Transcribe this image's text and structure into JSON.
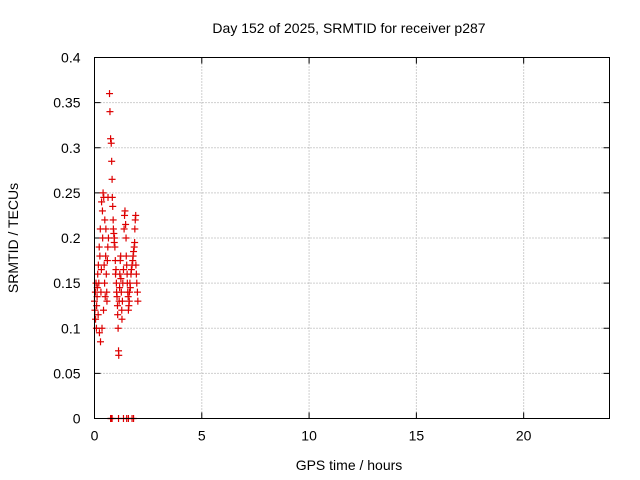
{
  "chart_data": {
    "type": "scatter",
    "title": "Day 152 of 2025, SRMTID for receiver p287",
    "xlabel": "GPS time / hours",
    "ylabel": "SRMTID / TECUs",
    "xlim": [
      0,
      24
    ],
    "ylim": [
      0,
      0.4
    ],
    "xticks": [
      0,
      5,
      10,
      15,
      20
    ],
    "xtick_labels": [
      "0",
      "5",
      "10",
      "15",
      "20"
    ],
    "yticks": [
      0,
      0.05,
      0.1,
      0.15,
      0.2,
      0.25,
      0.3,
      0.35,
      0.4
    ],
    "ytick_labels": [
      "0",
      "0.05",
      "0.1",
      "0.15",
      "0.2",
      "0.25",
      "0.3",
      "0.35",
      "0.4"
    ],
    "grid": true,
    "marker": "+",
    "color": "#dd0000",
    "series": [
      {
        "name": "p287",
        "x": [
          0.0,
          0.02,
          0.04,
          0.05,
          0.07,
          0.09,
          0.1,
          0.12,
          0.13,
          0.15,
          0.17,
          0.18,
          0.2,
          0.22,
          0.23,
          0.25,
          0.27,
          0.28,
          0.3,
          0.32,
          0.33,
          0.35,
          0.37,
          0.38,
          0.4,
          0.42,
          0.43,
          0.45,
          0.47,
          0.48,
          0.5,
          0.52,
          0.53,
          0.55,
          0.57,
          0.58,
          0.6,
          0.62,
          0.63,
          0.65,
          0.7,
          0.72,
          0.75,
          0.78,
          0.8,
          0.82,
          0.83,
          0.85,
          0.87,
          0.88,
          0.9,
          0.92,
          0.93,
          0.95,
          0.97,
          0.98,
          1.0,
          1.02,
          1.03,
          1.05,
          1.07,
          1.08,
          1.1,
          1.12,
          1.13,
          1.15,
          1.17,
          1.18,
          1.2,
          1.22,
          1.23,
          1.25,
          1.27,
          1.28,
          1.3,
          1.32,
          1.35,
          1.38,
          1.4,
          1.42,
          1.45,
          1.47,
          1.48,
          1.5,
          1.52,
          1.53,
          1.55,
          1.57,
          1.58,
          1.6,
          1.62,
          1.63,
          1.65,
          1.67,
          1.7,
          1.72,
          1.75,
          1.78,
          1.8,
          1.82,
          1.85,
          1.87,
          1.88,
          1.9,
          1.92,
          1.93,
          1.95,
          1.97,
          2.0,
          2.02,
          0.75,
          0.78,
          0.82,
          1.12,
          1.35,
          1.5,
          1.58,
          1.75,
          1.82
        ],
        "y": [
          0.13,
          0.12,
          0.14,
          0.11,
          0.15,
          0.1,
          0.125,
          0.135,
          0.145,
          0.16,
          0.115,
          0.17,
          0.15,
          0.19,
          0.095,
          0.18,
          0.21,
          0.085,
          0.14,
          0.165,
          0.24,
          0.1,
          0.23,
          0.2,
          0.25,
          0.12,
          0.245,
          0.17,
          0.15,
          0.22,
          0.135,
          0.18,
          0.21,
          0.16,
          0.14,
          0.13,
          0.175,
          0.19,
          0.245,
          0.2,
          0.36,
          0.34,
          0.31,
          0.305,
          0.285,
          0.265,
          0.245,
          0.235,
          0.22,
          0.21,
          0.205,
          0.195,
          0.2,
          0.19,
          0.175,
          0.16,
          0.165,
          0.15,
          0.14,
          0.135,
          0.125,
          0.115,
          0.1,
          0.075,
          0.07,
          0.13,
          0.145,
          0.16,
          0.175,
          0.18,
          0.155,
          0.14,
          0.12,
          0.11,
          0.13,
          0.15,
          0.165,
          0.21,
          0.225,
          0.23,
          0.215,
          0.2,
          0.18,
          0.17,
          0.16,
          0.15,
          0.14,
          0.135,
          0.12,
          0.125,
          0.13,
          0.14,
          0.15,
          0.145,
          0.16,
          0.165,
          0.17,
          0.175,
          0.18,
          0.185,
          0.19,
          0.195,
          0.21,
          0.22,
          0.225,
          0.17,
          0.16,
          0.15,
          0.14,
          0.13,
          0.0,
          0.0,
          0.0,
          0.0,
          0.0,
          0.0,
          0.0,
          0.0,
          0.0
        ]
      }
    ]
  }
}
